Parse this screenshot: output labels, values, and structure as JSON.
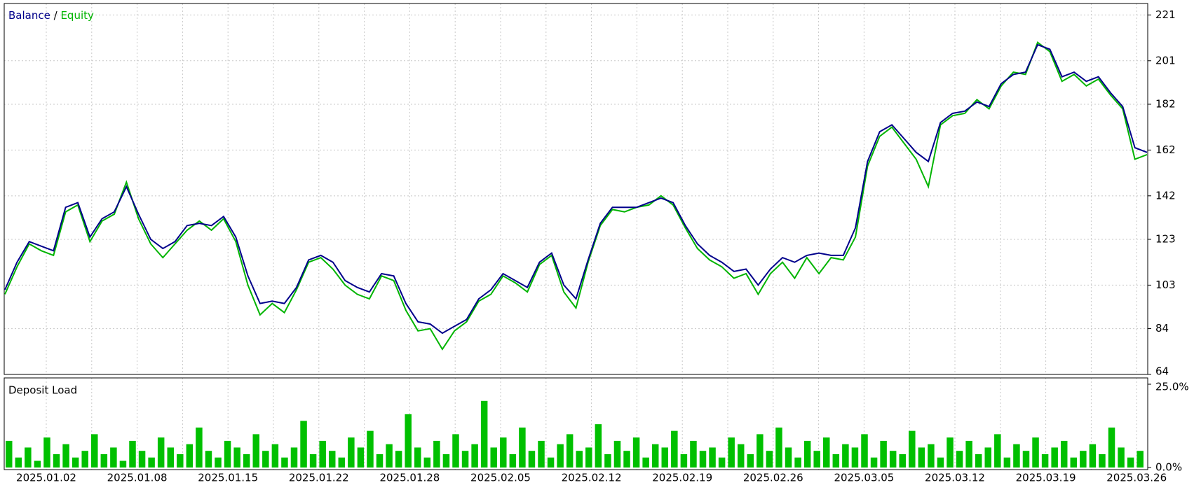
{
  "chart_data": [
    {
      "type": "line",
      "legend": {
        "balance": "Balance",
        "separator": "/",
        "equity": "Equity"
      },
      "series": [
        {
          "name": "Equity",
          "color": "#00b400",
          "values": [
            99,
            111,
            121,
            118,
            116,
            135,
            138,
            122,
            131,
            134,
            148,
            132,
            121,
            115,
            121,
            127,
            131,
            127,
            132,
            122,
            103,
            90,
            95,
            91,
            101,
            113,
            115,
            110,
            103,
            99,
            97,
            107,
            105,
            92,
            83,
            84,
            75,
            83,
            87,
            96,
            99,
            107,
            104,
            100,
            112,
            116,
            100,
            93,
            113,
            129,
            136,
            135,
            137,
            138,
            142,
            138,
            128,
            119,
            114,
            111,
            106,
            108,
            99,
            108,
            113,
            106,
            115,
            108,
            115,
            114,
            124,
            155,
            168,
            172,
            165,
            158,
            146,
            173,
            177,
            178,
            184,
            180,
            190,
            196,
            195,
            209,
            205,
            192,
            195,
            190,
            193,
            186,
            180,
            158,
            160
          ]
        },
        {
          "name": "Balance",
          "color": "#00008b",
          "values": [
            101,
            113,
            122,
            120,
            118,
            137,
            139,
            124,
            132,
            135,
            146,
            134,
            123,
            119,
            122,
            129,
            130,
            129,
            133,
            124,
            107,
            95,
            96,
            95,
            102,
            114,
            116,
            113,
            105,
            102,
            100,
            108,
            107,
            95,
            87,
            86,
            82,
            85,
            88,
            97,
            101,
            108,
            105,
            102,
            113,
            117,
            103,
            97,
            114,
            130,
            137,
            137,
            137,
            139,
            141,
            139,
            129,
            121,
            116,
            113,
            109,
            110,
            103,
            110,
            115,
            113,
            116,
            117,
            116,
            116,
            128,
            157,
            170,
            173,
            167,
            161,
            157,
            174,
            178,
            179,
            183,
            181,
            191,
            195,
            196,
            208,
            206,
            194,
            196,
            192,
            194,
            187,
            181,
            163,
            161
          ]
        }
      ],
      "ylim": [
        64,
        226
      ],
      "yticks": [
        64,
        84,
        103,
        123,
        142,
        162,
        182,
        201,
        221
      ],
      "grid": true,
      "x_axis_labels": [
        "2025.01.02",
        "2025.01.08",
        "2025.01.15",
        "2025.01.22",
        "2025.01.28",
        "2025.02.05",
        "2025.02.12",
        "2025.02.19",
        "2025.02.26",
        "2025.03.05",
        "2025.03.12",
        "2025.03.19",
        "2025.03.26"
      ]
    },
    {
      "type": "bar",
      "title": "Deposit Load",
      "color": "#00c000",
      "values": [
        8,
        3,
        6,
        2,
        9,
        4,
        7,
        3,
        5,
        10,
        4,
        6,
        2,
        8,
        5,
        3,
        9,
        6,
        4,
        7,
        12,
        5,
        3,
        8,
        6,
        4,
        10,
        5,
        7,
        3,
        6,
        14,
        4,
        8,
        5,
        3,
        9,
        6,
        11,
        4,
        7,
        5,
        16,
        6,
        3,
        8,
        4,
        10,
        5,
        7,
        20,
        6,
        9,
        4,
        12,
        5,
        8,
        3,
        7,
        10,
        5,
        6,
        13,
        4,
        8,
        5,
        9,
        3,
        7,
        6,
        11,
        4,
        8,
        5,
        6,
        3,
        9,
        7,
        4,
        10,
        5,
        12,
        6,
        3,
        8,
        5,
        9,
        4,
        7,
        6,
        10,
        3,
        8,
        5,
        4,
        11,
        6,
        7,
        3,
        9,
        5,
        8,
        4,
        6,
        10,
        3,
        7,
        5,
        9,
        4,
        6,
        8,
        3,
        5,
        7,
        4,
        12,
        6,
        3,
        5
      ],
      "ylim": [
        0,
        25
      ],
      "yticks": [
        {
          "value": 0,
          "label": "0.0%"
        },
        {
          "value": 25,
          "label": "25.0%"
        }
      ]
    }
  ]
}
